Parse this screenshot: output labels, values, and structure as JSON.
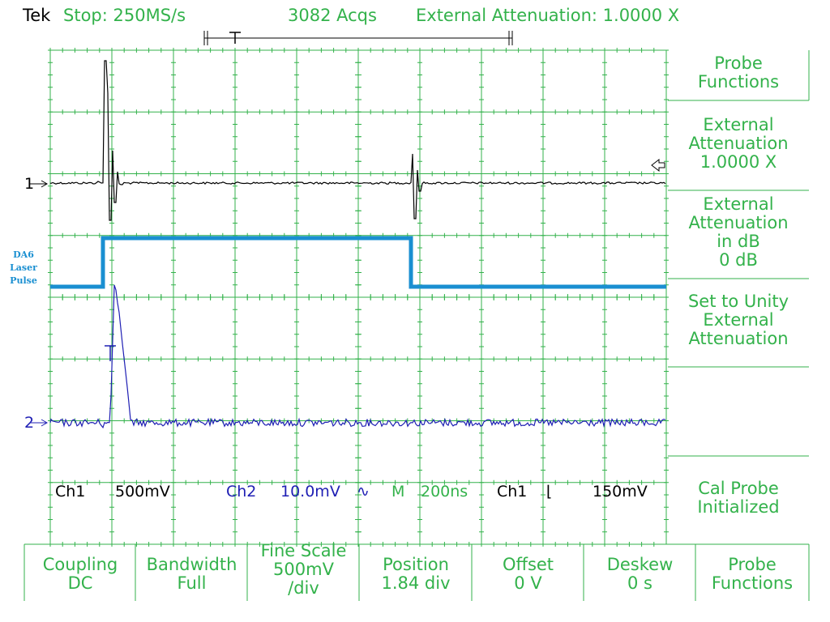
{
  "status": {
    "brand": "Tek",
    "trigger_status": "Stop: 250MS/s",
    "acquisitions": "3082 Acqs",
    "external_attenuation": "External Attenuation: 1.0000 X"
  },
  "channels": {
    "ch1_marker": "1",
    "ch2_marker": "2",
    "ch1_readout": "Ch1",
    "ch1_scale": "500mV",
    "ch2_readout": "Ch2",
    "ch2_scale": "10.0mV",
    "timebase_label": "M",
    "timebase_value": "200ns",
    "trigger_source": "Ch1",
    "trigger_level": "150mV"
  },
  "annotation": {
    "line1": "DA6",
    "line2": "Laser",
    "line3": "Pulse"
  },
  "side_menu": [
    {
      "lines": [
        "Probe",
        "Functions"
      ]
    },
    {
      "lines": [
        "External",
        "Attenuation",
        "1.0000 X"
      ]
    },
    {
      "lines": [
        "External",
        "Attenuation",
        "in dB",
        "0 dB"
      ]
    },
    {
      "lines": [
        "Set to Unity",
        "External",
        "Attenuation"
      ]
    },
    {
      "lines": []
    },
    {
      "lines": [
        "Cal Probe",
        "Initialized"
      ]
    }
  ],
  "bottom_menu": [
    {
      "lines": [
        "Coupling",
        "DC"
      ]
    },
    {
      "lines": [
        "Bandwidth",
        "Full"
      ]
    },
    {
      "lines": [
        "Fine Scale",
        "500mV",
        "/div"
      ]
    },
    {
      "lines": [
        "Position",
        "1.84 div"
      ]
    },
    {
      "lines": [
        "Offset",
        "0 V"
      ]
    },
    {
      "lines": [
        "Deskew",
        "0 s"
      ]
    },
    {
      "lines": [
        "Probe",
        "Functions"
      ]
    }
  ],
  "colors": {
    "grid": "#33b24b",
    "ch1_trace": "#000000",
    "ch2_trace": "#1f1fb4",
    "laser_pulse": "#1a8fd1"
  }
}
